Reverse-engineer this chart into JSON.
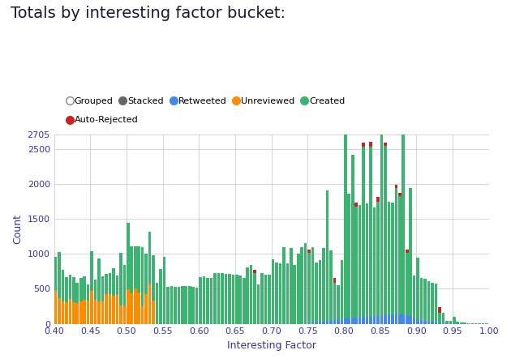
{
  "title": "Totals by interesting factor bucket:",
  "xlabel": "Interesting Factor",
  "ylabel": "Count",
  "xlim": [
    0.4,
    1.0
  ],
  "ylim": [
    0,
    2705
  ],
  "yticks": [
    0,
    500,
    1000,
    1500,
    2000,
    2500,
    2705
  ],
  "xticks": [
    0.4,
    0.45,
    0.5,
    0.55,
    0.6,
    0.65,
    0.7,
    0.75,
    0.8,
    0.85,
    0.9,
    0.95,
    1.0
  ],
  "bar_width": 0.004,
  "colors": {
    "unreviewed": "#FF8C00",
    "created": "#3CB371",
    "retweeted": "#4488EE",
    "auto_rejected": "#CC2222",
    "grouped_face": "#FFFFFF",
    "grouped_edge": "#888888",
    "stacked": "#666666"
  },
  "bins": [
    0.4,
    0.405,
    0.41,
    0.415,
    0.42,
    0.425,
    0.43,
    0.435,
    0.44,
    0.445,
    0.45,
    0.455,
    0.46,
    0.465,
    0.47,
    0.475,
    0.48,
    0.485,
    0.49,
    0.495,
    0.5,
    0.505,
    0.51,
    0.515,
    0.52,
    0.525,
    0.53,
    0.535,
    0.54,
    0.545,
    0.55,
    0.555,
    0.56,
    0.565,
    0.57,
    0.575,
    0.58,
    0.585,
    0.59,
    0.595,
    0.6,
    0.605,
    0.61,
    0.615,
    0.62,
    0.625,
    0.63,
    0.635,
    0.64,
    0.645,
    0.65,
    0.655,
    0.66,
    0.665,
    0.67,
    0.675,
    0.68,
    0.685,
    0.69,
    0.695,
    0.7,
    0.705,
    0.71,
    0.715,
    0.72,
    0.725,
    0.73,
    0.735,
    0.74,
    0.745,
    0.75,
    0.755,
    0.76,
    0.765,
    0.77,
    0.775,
    0.78,
    0.785,
    0.79,
    0.795,
    0.8,
    0.805,
    0.81,
    0.815,
    0.82,
    0.825,
    0.83,
    0.835,
    0.84,
    0.845,
    0.85,
    0.855,
    0.86,
    0.865,
    0.87,
    0.875,
    0.88,
    0.885,
    0.89,
    0.895,
    0.9,
    0.905,
    0.91,
    0.915,
    0.92,
    0.925,
    0.93,
    0.935,
    0.94,
    0.945,
    0.95,
    0.955,
    0.96,
    0.965,
    0.97,
    0.975,
    0.98,
    0.985,
    0.99,
    0.995
  ],
  "unreviewed": [
    470,
    370,
    320,
    310,
    350,
    310,
    295,
    315,
    340,
    330,
    475,
    340,
    315,
    325,
    425,
    425,
    405,
    415,
    260,
    255,
    495,
    435,
    505,
    445,
    255,
    425,
    565,
    335,
    0,
    0,
    0,
    0,
    0,
    0,
    0,
    0,
    0,
    0,
    0,
    0,
    0,
    0,
    0,
    0,
    0,
    0,
    0,
    0,
    0,
    0,
    0,
    0,
    0,
    0,
    0,
    0,
    0,
    0,
    0,
    0,
    0,
    0,
    0,
    0,
    0,
    0,
    0,
    0,
    0,
    0,
    0,
    0,
    0,
    0,
    0,
    0,
    0,
    0,
    0,
    0,
    0,
    0,
    0,
    0,
    0,
    0,
    0,
    0,
    0,
    0,
    0,
    0,
    0,
    0,
    0,
    0,
    0,
    0,
    0,
    0,
    0,
    0,
    0,
    0,
    0,
    0,
    0,
    0,
    0,
    0,
    0,
    0,
    0,
    0,
    0,
    0,
    0,
    0,
    0,
    0
  ],
  "retweeted": [
    0,
    0,
    0,
    0,
    0,
    0,
    0,
    0,
    0,
    0,
    0,
    0,
    0,
    0,
    0,
    0,
    0,
    0,
    0,
    0,
    0,
    0,
    0,
    0,
    0,
    0,
    0,
    0,
    0,
    0,
    0,
    0,
    0,
    0,
    0,
    0,
    0,
    0,
    0,
    0,
    0,
    0,
    0,
    0,
    0,
    0,
    0,
    0,
    0,
    0,
    0,
    0,
    0,
    0,
    0,
    0,
    0,
    0,
    0,
    0,
    0,
    0,
    0,
    0,
    0,
    0,
    0,
    0,
    0,
    0,
    10,
    15,
    20,
    25,
    30,
    40,
    50,
    55,
    60,
    70,
    80,
    85,
    90,
    90,
    95,
    95,
    100,
    100,
    105,
    110,
    120,
    125,
    130,
    135,
    140,
    135,
    130,
    125,
    110,
    90,
    70,
    55,
    45,
    35,
    25,
    18,
    12,
    8,
    5,
    3,
    0,
    0,
    0,
    0,
    0,
    0,
    0,
    0,
    0,
    0
  ],
  "auto_rejected": [
    0,
    0,
    0,
    0,
    0,
    0,
    0,
    0,
    0,
    0,
    0,
    0,
    0,
    0,
    0,
    0,
    0,
    0,
    0,
    0,
    0,
    0,
    0,
    0,
    0,
    0,
    0,
    0,
    0,
    0,
    0,
    0,
    0,
    0,
    0,
    0,
    0,
    0,
    0,
    0,
    0,
    0,
    0,
    0,
    0,
    0,
    0,
    0,
    0,
    0,
    0,
    0,
    0,
    0,
    0,
    50,
    0,
    0,
    0,
    0,
    0,
    0,
    0,
    0,
    0,
    0,
    0,
    0,
    0,
    0,
    50,
    0,
    0,
    0,
    0,
    0,
    0,
    60,
    0,
    0,
    0,
    0,
    0,
    60,
    0,
    60,
    0,
    60,
    0,
    70,
    0,
    50,
    0,
    0,
    50,
    50,
    0,
    50,
    0,
    0,
    0,
    0,
    0,
    0,
    0,
    0,
    80,
    0,
    0,
    0,
    0,
    0,
    0,
    0,
    0,
    0,
    0,
    0,
    0,
    0
  ],
  "created": [
    490,
    655,
    450,
    355,
    355,
    360,
    290,
    340,
    335,
    235,
    565,
    295,
    615,
    355,
    285,
    295,
    385,
    275,
    755,
    590,
    945,
    675,
    605,
    665,
    845,
    575,
    755,
    640,
    585,
    780,
    955,
    530,
    540,
    530,
    530,
    540,
    535,
    540,
    530,
    520,
    665,
    680,
    650,
    660,
    720,
    720,
    720,
    715,
    710,
    705,
    700,
    695,
    660,
    800,
    835,
    720,
    565,
    720,
    700,
    700,
    920,
    880,
    865,
    1100,
    860,
    1085,
    845,
    1000,
    1100,
    1150,
    1000,
    1080,
    860,
    890,
    1050,
    1865,
    1000,
    535,
    495,
    840,
    2650,
    1775,
    2320,
    1580,
    1605,
    2435,
    1625,
    2435,
    1560,
    1635,
    2650,
    2415,
    1615,
    1595,
    1795,
    1685,
    2665,
    885,
    1835,
    605,
    875,
    595,
    595,
    575,
    565,
    555,
    145,
    148,
    42,
    42,
    105,
    32,
    22,
    16,
    12,
    6,
    4,
    2,
    2,
    5
  ],
  "background_color": "#FFFFFF",
  "grid_color": "#CCCCCC",
  "title_color": "#1a1a2e",
  "axis_color": "#333399",
  "tick_fontsize": 8,
  "label_fontsize": 9,
  "title_fontsize": 14
}
